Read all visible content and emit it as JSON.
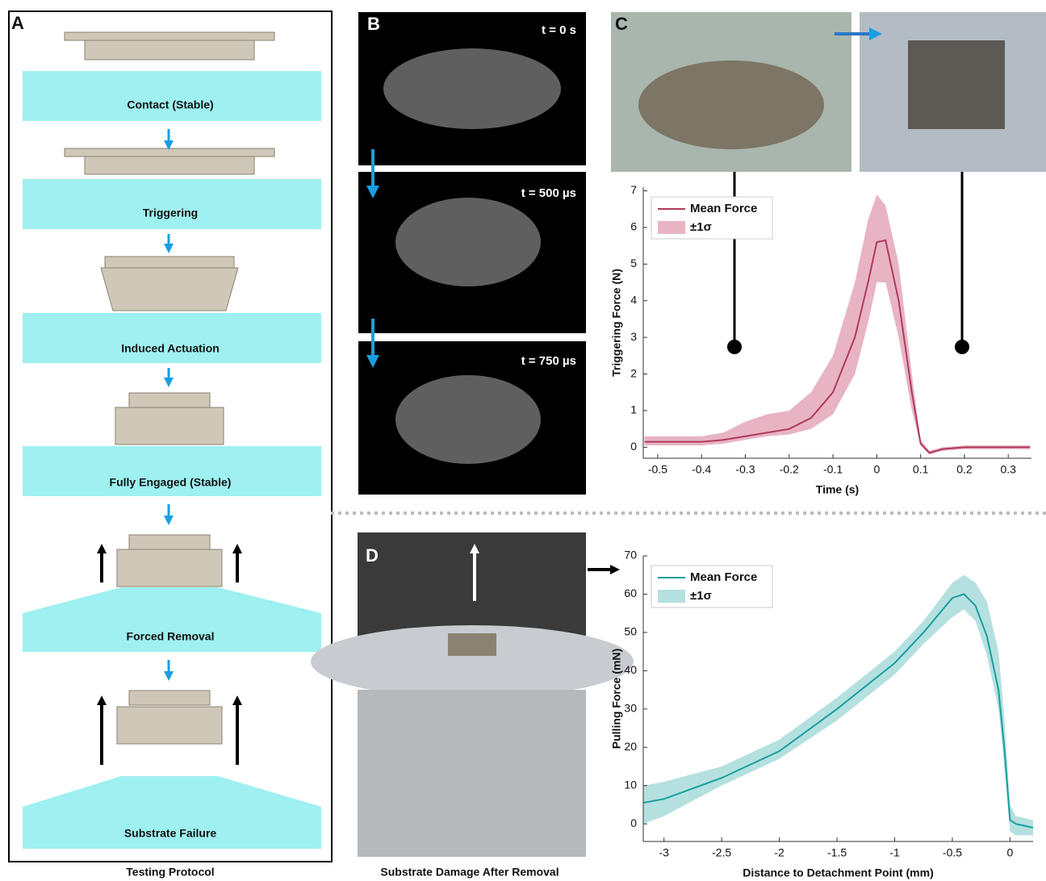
{
  "panels": {
    "a": "A",
    "b": "B",
    "c": "C",
    "d": "D"
  },
  "protocol": {
    "caption": "Testing Protocol",
    "stages": [
      "Contact (Stable)",
      "Triggering",
      "Induced Actuation",
      "Fully Engaged (Stable)",
      "Forced Removal",
      "Substrate Failure"
    ]
  },
  "frames": [
    "t = 0 s",
    "t = 500 µs",
    "t = 750 µs"
  ],
  "damage_caption": "Substrate Damage After Removal",
  "chart_data": [
    {
      "type": "line",
      "xlabel": "Time (s)",
      "ylabel": "Triggering Force (N)",
      "x": [
        -0.53,
        -0.45,
        -0.4,
        -0.35,
        -0.3,
        -0.25,
        -0.2,
        -0.15,
        -0.1,
        -0.05,
        -0.02,
        0,
        0.02,
        0.05,
        0.08,
        0.1,
        0.12,
        0.15,
        0.2,
        0.3,
        0.35
      ],
      "series": [
        {
          "name": "Mean Force",
          "color": "#b03a5b",
          "values": [
            0.15,
            0.15,
            0.15,
            0.2,
            0.3,
            0.4,
            0.5,
            0.8,
            1.5,
            3.0,
            4.5,
            5.6,
            5.65,
            4.0,
            1.5,
            0.1,
            -0.15,
            -0.05,
            0,
            0,
            0
          ]
        }
      ],
      "band": {
        "name": "±1σ",
        "color": "#e8b4c4",
        "lower": [
          0.05,
          0.05,
          0.05,
          0.1,
          0.2,
          0.3,
          0.35,
          0.5,
          0.9,
          2.0,
          3.4,
          4.5,
          4.5,
          3.0,
          1.0,
          0.05,
          -0.2,
          -0.1,
          -0.05,
          -0.05,
          -0.05
        ],
        "upper": [
          0.3,
          0.3,
          0.3,
          0.4,
          0.7,
          0.9,
          1.0,
          1.5,
          2.5,
          4.5,
          6.2,
          6.9,
          6.6,
          5.0,
          2.0,
          0.2,
          -0.1,
          0,
          0.05,
          0.05,
          0.05
        ]
      },
      "xlim": [
        -0.533,
        0.353
      ],
      "ylim": [
        -0.3,
        7.1
      ],
      "xticks": [
        -0.5,
        -0.4,
        -0.3,
        -0.2,
        -0.1,
        0,
        0.1,
        0.2,
        0.3
      ],
      "yticks": [
        0,
        1,
        2,
        3,
        4,
        5,
        6,
        7
      ]
    },
    {
      "type": "line",
      "xlabel": "Distance to Detachment Point (mm)",
      "ylabel": "Pulling Force (mN)",
      "x": [
        -3.18,
        -3,
        -2.5,
        -2,
        -1.5,
        -1,
        -0.75,
        -0.5,
        -0.4,
        -0.3,
        -0.2,
        -0.1,
        -0.05,
        0,
        0.05,
        0.2
      ],
      "series": [
        {
          "name": "Mean Force",
          "color": "#1a9e9e",
          "values": [
            5.5,
            6.5,
            12,
            19,
            30,
            42,
            50,
            59,
            60,
            57,
            49,
            35,
            20,
            1,
            0,
            -1
          ]
        }
      ],
      "band": {
        "name": "±1σ",
        "color": "#b5e0e0",
        "lower": [
          0,
          2,
          10,
          17,
          27,
          39,
          47,
          54,
          56,
          53,
          44,
          30,
          15,
          -2,
          -3,
          -3
        ],
        "upper": [
          10,
          11,
          15,
          22,
          33,
          45,
          53,
          63,
          65,
          63,
          58,
          45,
          28,
          5,
          2,
          1
        ]
      },
      "xlim": [
        -3.18,
        0.2
      ],
      "ylim": [
        -4.6,
        70
      ],
      "xticks": [
        -3,
        -2.5,
        -2,
        -1.5,
        -1,
        -0.5,
        0
      ],
      "yticks": [
        0,
        10,
        20,
        30,
        40,
        50,
        60,
        70
      ]
    }
  ]
}
